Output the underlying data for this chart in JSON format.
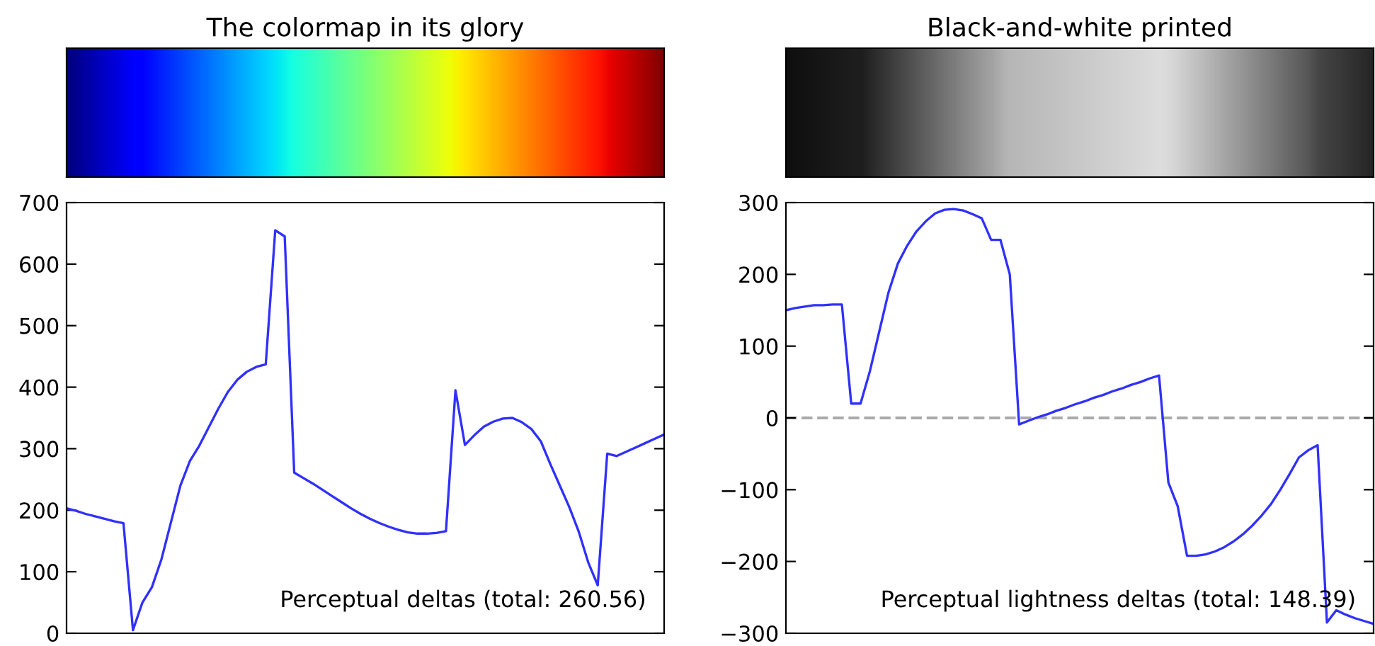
{
  "chart_data": [
    {
      "type": "line",
      "title": "The colormap in its glory",
      "categories": [
        null,
        null,
        null,
        null,
        null,
        null,
        null,
        null,
        null,
        null,
        null,
        null,
        null,
        null,
        null,
        null,
        null,
        null,
        null,
        null,
        null,
        null,
        null,
        null,
        null,
        null,
        null,
        null,
        null,
        null,
        null,
        null,
        null,
        null,
        null,
        null,
        null,
        null,
        null,
        null,
        null,
        null,
        null,
        null,
        null,
        null,
        null,
        null,
        null,
        null,
        null,
        null,
        null,
        null,
        null,
        null,
        null,
        null,
        null,
        null,
        null,
        null,
        null,
        null
      ],
      "series": [
        {
          "color": "#3030ff",
          "values": [
            203,
            199,
            194,
            190,
            186,
            182,
            179,
            5,
            50,
            75,
            120,
            180,
            240,
            280,
            305,
            335,
            365,
            392,
            412,
            425,
            433,
            437,
            655,
            645,
            261,
            252,
            243,
            233,
            223,
            213,
            203,
            194,
            186,
            179,
            173,
            168,
            164,
            162,
            162,
            163,
            166,
            395,
            306,
            322,
            336,
            344,
            349,
            350,
            343,
            332,
            312,
            275,
            240,
            205,
            165,
            115,
            78,
            292,
            288,
            295,
            302,
            309,
            316,
            323
          ]
        }
      ],
      "ylim": [
        0,
        700
      ],
      "yticks": [
        0,
        100,
        200,
        300,
        400,
        500,
        600,
        700
      ],
      "grid": false,
      "tick_labels": "y",
      "line_style": "solid",
      "annotations": [
        "Perceptual deltas (total: 260.56)"
      ]
    },
    {
      "type": "line",
      "title": "Black-and-white printed",
      "categories": [
        null,
        null,
        null,
        null,
        null,
        null,
        null,
        null,
        null,
        null,
        null,
        null,
        null,
        null,
        null,
        null,
        null,
        null,
        null,
        null,
        null,
        null,
        null,
        null,
        null,
        null,
        null,
        null,
        null,
        null,
        null,
        null,
        null,
        null,
        null,
        null,
        null,
        null,
        null,
        null,
        null,
        null,
        null,
        null,
        null,
        null,
        null,
        null,
        null,
        null,
        null,
        null,
        null,
        null,
        null,
        null,
        null,
        null,
        null,
        null,
        null,
        null,
        null,
        null
      ],
      "series": [
        {
          "color": "#3030ff",
          "values": [
            150,
            153,
            155,
            157,
            157,
            158,
            158,
            20,
            20,
            65,
            120,
            175,
            215,
            240,
            260,
            274,
            285,
            290,
            291,
            289,
            284,
            278,
            248,
            248,
            200,
            -9,
            -4,
            1,
            5,
            10,
            14,
            19,
            23,
            28,
            32,
            37,
            41,
            46,
            50,
            55,
            59,
            -90,
            -123,
            -192,
            -192,
            -190,
            -186,
            -180,
            -172,
            -162,
            -150,
            -136,
            -120,
            -100,
            -78,
            -55,
            -45,
            -38,
            -285,
            -268,
            -274,
            -279,
            -283,
            -287
          ]
        }
      ],
      "ylim": [
        -300,
        300
      ],
      "yticks": [
        -300,
        -200,
        -100,
        0,
        100,
        200,
        300
      ],
      "grid": false,
      "tick_labels": "y",
      "line_style": "solid",
      "ref_lines": [
        {
          "axis": "y",
          "value": 0,
          "color": "#aaaaaa",
          "line_style": "dashed"
        }
      ],
      "annotations": [
        "Perceptual lightness deltas (total: 148.39)"
      ]
    }
  ]
}
